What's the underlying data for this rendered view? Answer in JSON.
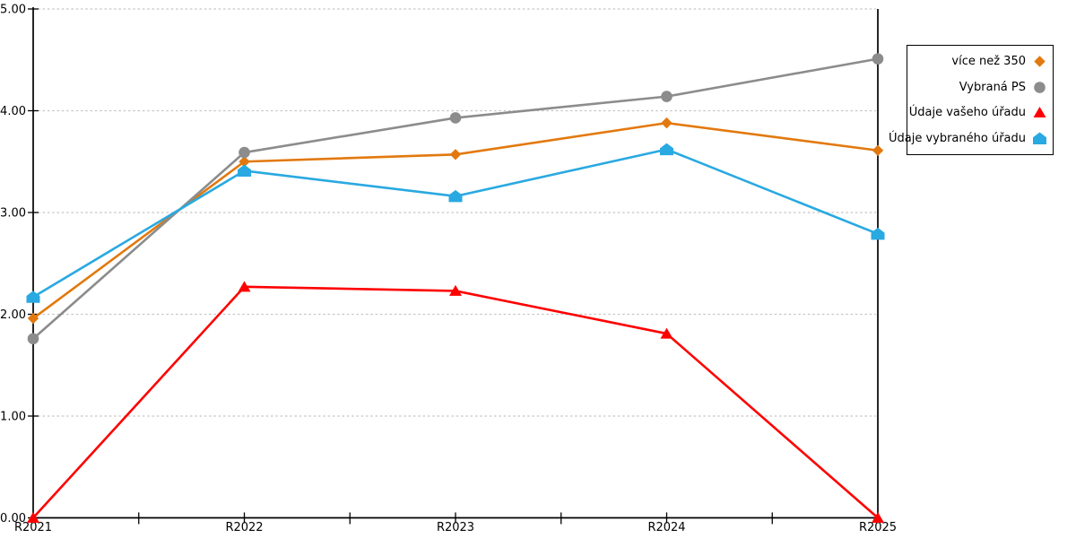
{
  "chart_data": {
    "type": "line",
    "title": "",
    "xlabel": "",
    "ylabel": "",
    "categories": [
      "R2021",
      "R2022",
      "R2023",
      "R2024",
      "R2025"
    ],
    "series": [
      {
        "name": "více než 350",
        "marker": "diamond",
        "color": "#E2790E",
        "values": [
          1.96,
          3.5,
          3.57,
          3.88,
          3.61
        ]
      },
      {
        "name": "Vybraná PS",
        "marker": "circle",
        "color": "#8C8C8C",
        "values": [
          1.76,
          3.59,
          3.93,
          4.14,
          4.51
        ]
      },
      {
        "name": "Údaje vašeho úřadu",
        "marker": "triangle-up",
        "color": "#FF0000",
        "values": [
          0.0,
          2.27,
          2.23,
          1.81,
          0.0
        ]
      },
      {
        "name": "Údaje vybraného úřadu",
        "marker": "pentagon",
        "color": "#29A9E1",
        "values": [
          2.17,
          3.41,
          3.16,
          3.62,
          2.79
        ]
      }
    ],
    "ylim": [
      0,
      5
    ],
    "ytick_labels": [
      "0.00",
      "1.00",
      "2.00",
      "3.00",
      "4.00",
      "5.00"
    ],
    "grid": "horizontal-dotted",
    "gridline_color": "#C5C5C5",
    "axis_color": "#000000",
    "legend_position": "outside-right"
  }
}
